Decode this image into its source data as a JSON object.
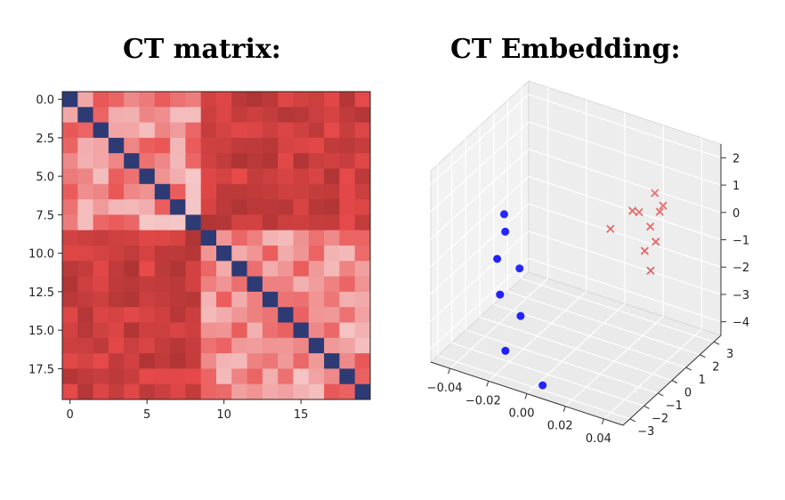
{
  "chart_data": [
    {
      "type": "heatmap",
      "title": "CT matrix:",
      "size": 20,
      "x_ticks": [
        "0",
        "5",
        "10",
        "15"
      ],
      "x_tick_values": [
        0,
        5,
        10,
        15
      ],
      "y_ticks": [
        "0.0",
        "2.5",
        "5.0",
        "7.5",
        "10.0",
        "12.5",
        "15.0",
        "17.5"
      ],
      "y_tick_values": [
        0,
        2.5,
        5,
        7.5,
        10,
        12.5,
        15,
        17.5
      ],
      "clusters": [
        [
          0,
          1,
          2,
          3,
          4,
          5,
          6,
          7,
          8
        ],
        [
          9,
          10,
          11,
          12,
          13,
          14,
          15,
          16,
          17,
          18,
          19
        ]
      ],
      "diagonal_color": "#2e3a73",
      "colormap": [
        "#a83232",
        "#e84a4a",
        "#f5c8c8"
      ]
    },
    {
      "type": "scatter3d",
      "title": "CT Embedding:",
      "x_ticks": [
        "−0.04",
        "−0.02",
        "0.00",
        "0.02",
        "0.04"
      ],
      "x_range": [
        -0.05,
        0.05
      ],
      "y_ticks": [
        "−3",
        "−2",
        "−1",
        "0",
        "1",
        "2",
        "3"
      ],
      "y_range": [
        -3.5,
        3.5
      ],
      "z_ticks": [
        "2",
        "1",
        "0",
        "−1",
        "−2",
        "−3",
        "−4"
      ],
      "z_range": [
        -4.5,
        2.5
      ],
      "grid": true,
      "series": [
        {
          "marker": "o",
          "color": "#0000ff",
          "points": [
            [
              -0.03,
              -1.0,
              0.2
            ],
            [
              -0.028,
              -1.2,
              -0.3
            ],
            [
              -0.03,
              -1.5,
              -1.2
            ],
            [
              -0.022,
              -1.0,
              -1.6
            ],
            [
              -0.03,
              -1.3,
              -2.6
            ],
            [
              -0.02,
              -1.2,
              -3.2
            ],
            [
              -0.025,
              -1.6,
              -4.4
            ],
            [
              -0.01,
              -1.0,
              -5.6
            ]
          ]
        },
        {
          "marker": "x",
          "color": "#e03030",
          "points": [
            [
              0.028,
              1.8,
              1.0
            ],
            [
              0.033,
              1.7,
              0.7
            ],
            [
              0.022,
              1.5,
              0.3
            ],
            [
              0.02,
              1.3,
              0.4
            ],
            [
              0.03,
              1.2,
              0.1
            ],
            [
              0.035,
              0.9,
              -0.2
            ],
            [
              0.032,
              1.6,
              0.5
            ],
            [
              0.01,
              1.1,
              -0.4
            ],
            [
              0.03,
              0.8,
              -0.6
            ],
            [
              0.036,
              0.4,
              -1.0
            ]
          ]
        }
      ]
    }
  ]
}
